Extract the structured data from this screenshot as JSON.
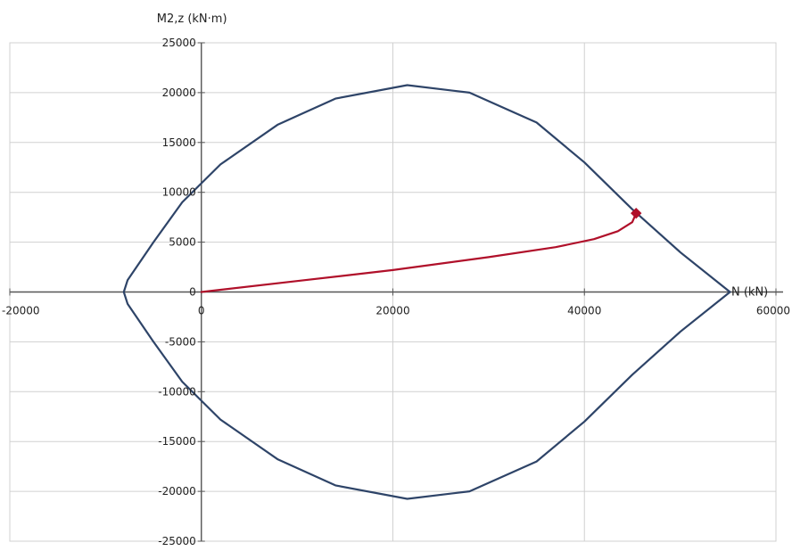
{
  "chart_data": {
    "type": "line",
    "title": "",
    "xlabel": "N (kN)",
    "ylabel": "M2,z (kN·m)",
    "xlim": [
      -20000,
      60000
    ],
    "ylim": [
      -25000,
      25000
    ],
    "x_ticks": [
      -20000,
      0,
      20000,
      40000,
      60000
    ],
    "y_ticks": [
      -25000,
      -20000,
      -15000,
      -10000,
      -5000,
      0,
      5000,
      10000,
      15000,
      20000,
      25000
    ],
    "grid": true,
    "colors": {
      "interaction": "#2e4468",
      "path": "#b0102a",
      "marker": "#b0102a",
      "axis": "#555555",
      "grid": "#d0d0d0"
    },
    "series": [
      {
        "values": [
          [
            -8100,
            0
          ],
          [
            -7700,
            1200
          ],
          [
            -5000,
            5000
          ],
          [
            -2000,
            9000
          ],
          [
            2000,
            12800
          ],
          [
            8000,
            16800
          ],
          [
            14000,
            19400
          ],
          [
            21500,
            20750
          ],
          [
            28000,
            20000
          ],
          [
            35000,
            17000
          ],
          [
            40000,
            13000
          ],
          [
            45000,
            8300
          ],
          [
            50000,
            4000
          ],
          [
            55200,
            0
          ],
          [
            50000,
            -4000
          ],
          [
            45000,
            -8300
          ],
          [
            40000,
            -13000
          ],
          [
            35000,
            -17000
          ],
          [
            28000,
            -20000
          ],
          [
            21500,
            -20750
          ],
          [
            14000,
            -19400
          ],
          [
            8000,
            -16800
          ],
          [
            2000,
            -12800
          ],
          [
            -2000,
            -9000
          ],
          [
            -5000,
            -5000
          ],
          [
            -7700,
            -1200
          ],
          [
            -8100,
            0
          ]
        ]
      },
      {
        "values": [
          [
            0,
            0
          ],
          [
            10000,
            1100
          ],
          [
            20000,
            2200
          ],
          [
            30000,
            3500
          ],
          [
            37000,
            4500
          ],
          [
            41000,
            5300
          ],
          [
            43500,
            6100
          ],
          [
            45000,
            7000
          ],
          [
            45400,
            7900
          ]
        ]
      }
    ],
    "marker": {
      "x": 45400,
      "y": 7900
    }
  }
}
